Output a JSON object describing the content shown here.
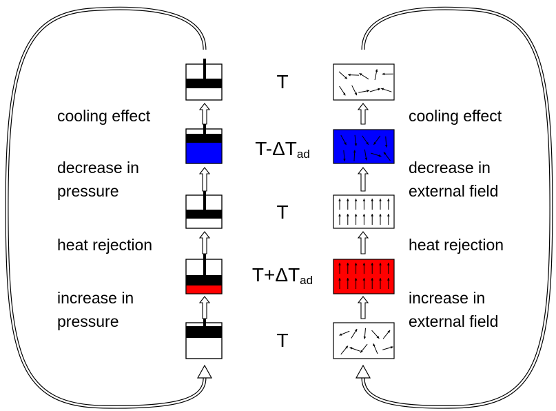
{
  "center_labels": [
    {
      "text": "T"
    },
    {
      "text": "T-ΔT",
      "sub": "ad"
    },
    {
      "text": "T"
    },
    {
      "text": "T+ΔT",
      "sub": "ad"
    },
    {
      "text": "T"
    }
  ],
  "left_steps": [
    {
      "lines": [
        "cooling effect"
      ]
    },
    {
      "lines": [
        "decrease in",
        "pressure"
      ]
    },
    {
      "lines": [
        "heat rejection"
      ]
    },
    {
      "lines": [
        "increase in",
        "pressure"
      ]
    }
  ],
  "right_steps": [
    {
      "lines": [
        "cooling effect"
      ]
    },
    {
      "lines": [
        "decrease in",
        "external field"
      ]
    },
    {
      "lines": [
        "heat rejection"
      ]
    },
    {
      "lines": [
        "increase in",
        "external field"
      ]
    }
  ]
}
